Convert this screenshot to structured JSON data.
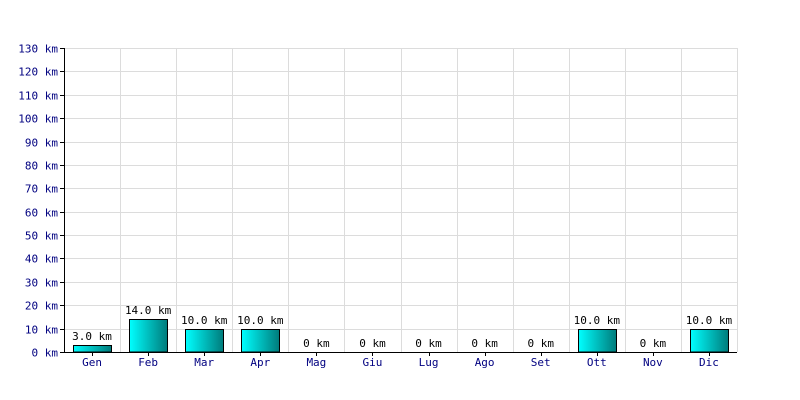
{
  "chart_data": {
    "type": "bar",
    "title": "",
    "xlabel": "",
    "ylabel": "",
    "unit_suffix": " km",
    "categories": [
      "Gen",
      "Feb",
      "Mar",
      "Apr",
      "Mag",
      "Giu",
      "Lug",
      "Ago",
      "Set",
      "Ott",
      "Nov",
      "Dic"
    ],
    "values": [
      3.0,
      14.0,
      10.0,
      10.0,
      0,
      0,
      0,
      0,
      0,
      10.0,
      0,
      10.0
    ],
    "data_labels": [
      "3.0 km",
      "14.0 km",
      "10.0 km",
      "10.0 km",
      "0 km",
      "0 km",
      "0 km",
      "0 km",
      "0 km",
      "10.0 km",
      "0 km",
      "10.0 km"
    ],
    "ylim": [
      0,
      130
    ],
    "y_ticks": [
      0,
      10,
      20,
      30,
      40,
      50,
      60,
      70,
      80,
      90,
      100,
      110,
      120,
      130
    ],
    "y_tick_labels": [
      "0 km",
      "10 km",
      "20 km",
      "30 km",
      "40 km",
      "50 km",
      "60 km",
      "70 km",
      "80 km",
      "90 km",
      "100 km",
      "110 km",
      "120 km",
      "130 km"
    ],
    "grid": true,
    "legend": "none",
    "colors": {
      "bar_light": "#00ffff",
      "bar_dark": "#007b7b",
      "grid": "#dcdcdc",
      "axis": "#000000",
      "label": "#000080"
    }
  }
}
